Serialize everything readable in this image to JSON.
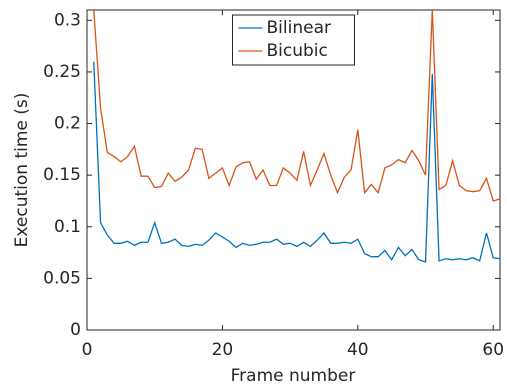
{
  "chart_data": {
    "type": "line",
    "xlabel": "Frame number",
    "ylabel": "Execution time (s)",
    "x": [
      1,
      2,
      3,
      4,
      5,
      6,
      7,
      8,
      9,
      10,
      11,
      12,
      13,
      14,
      15,
      16,
      17,
      18,
      19,
      20,
      21,
      22,
      23,
      24,
      25,
      26,
      27,
      28,
      29,
      30,
      31,
      32,
      33,
      34,
      35,
      36,
      37,
      38,
      39,
      40,
      41,
      42,
      43,
      44,
      45,
      46,
      47,
      48,
      49,
      50,
      51,
      52,
      53,
      54,
      55,
      56,
      57,
      58,
      59,
      60,
      61
    ],
    "series": [
      {
        "name": "Bilinear",
        "color": "#0072bd",
        "values": [
          0.26,
          0.104,
          0.092,
          0.084,
          0.084,
          0.086,
          0.082,
          0.085,
          0.085,
          0.104,
          0.084,
          0.085,
          0.088,
          0.082,
          0.081,
          0.083,
          0.082,
          0.087,
          0.094,
          0.09,
          0.086,
          0.08,
          0.084,
          0.082,
          0.083,
          0.085,
          0.085,
          0.088,
          0.083,
          0.084,
          0.081,
          0.085,
          0.081,
          0.087,
          0.094,
          0.084,
          0.084,
          0.085,
          0.084,
          0.088,
          0.074,
          0.071,
          0.071,
          0.077,
          0.068,
          0.08,
          0.072,
          0.078,
          0.068,
          0.066,
          0.248,
          0.067,
          0.069,
          0.068,
          0.069,
          0.068,
          0.07,
          0.067,
          0.094,
          0.07,
          0.069
        ]
      },
      {
        "name": "Bicubic",
        "color": "#d95319",
        "values": [
          0.31,
          0.215,
          0.172,
          0.168,
          0.163,
          0.168,
          0.178,
          0.149,
          0.149,
          0.138,
          0.139,
          0.152,
          0.144,
          0.148,
          0.155,
          0.176,
          0.175,
          0.147,
          0.152,
          0.157,
          0.14,
          0.158,
          0.162,
          0.163,
          0.146,
          0.155,
          0.14,
          0.14,
          0.157,
          0.152,
          0.145,
          0.173,
          0.14,
          0.155,
          0.171,
          0.15,
          0.133,
          0.148,
          0.155,
          0.194,
          0.133,
          0.141,
          0.133,
          0.157,
          0.16,
          0.165,
          0.162,
          0.174,
          0.164,
          0.15,
          0.31,
          0.136,
          0.14,
          0.164,
          0.14,
          0.135,
          0.134,
          0.135,
          0.147,
          0.125,
          0.127
        ]
      }
    ],
    "xlim": [
      0,
      61
    ],
    "xticks": [
      0,
      20,
      40,
      60
    ],
    "ylim": [
      0,
      0.31
    ],
    "yticks": [
      0,
      0.05,
      0.1,
      0.15,
      0.2,
      0.25,
      0.3
    ],
    "legend": "upper center"
  }
}
